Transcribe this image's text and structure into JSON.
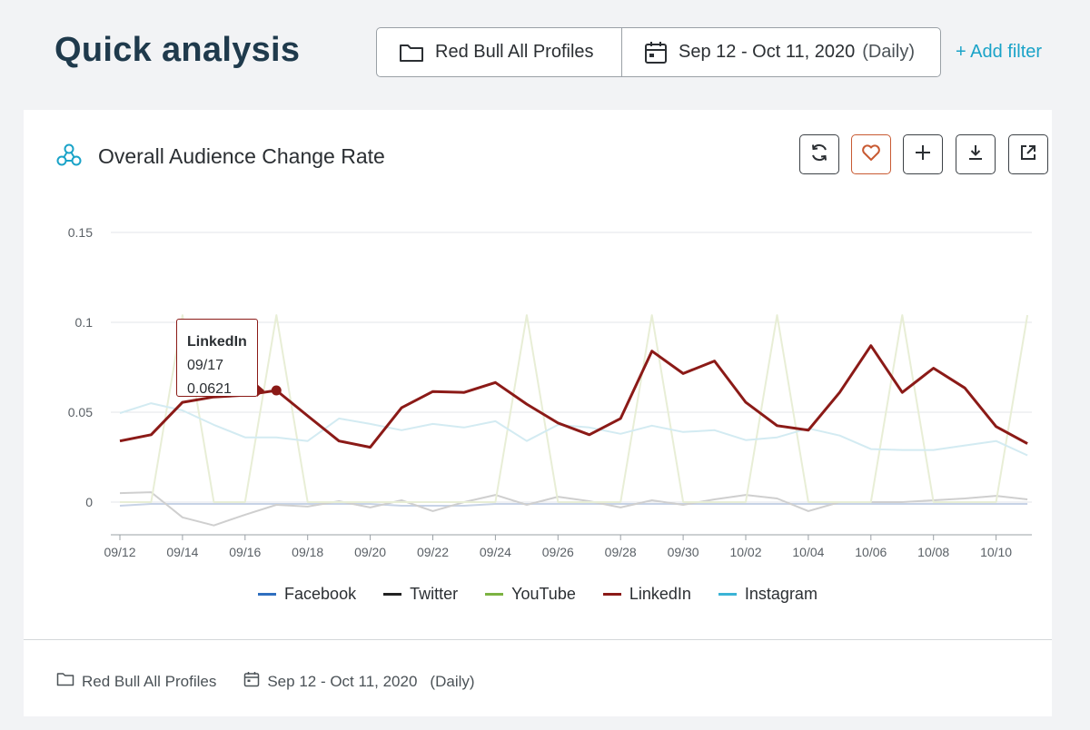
{
  "header": {
    "title": "Quick analysis",
    "profile_filter": "Red Bull All Profiles",
    "date_range": "Sep 12 - Oct 11, 2020",
    "granularity": "(Daily)",
    "add_filter": "+ Add filter"
  },
  "card": {
    "title": "Overall Audience Change Rate",
    "toolbar": [
      "refresh-icon",
      "heart-icon",
      "plus-icon",
      "download-icon",
      "external-link-icon"
    ]
  },
  "tooltip": {
    "series": "LinkedIn",
    "date": "09/17",
    "value": "0.0621"
  },
  "footer": {
    "profile": "Red Bull All Profiles",
    "date_range": "Sep 12 - Oct 11, 2020",
    "granularity": "(Daily)"
  },
  "colors": {
    "accent": "#1aa3c8",
    "linkedin": "#8b1a17",
    "favorite": "#c85a32"
  },
  "chart_data": {
    "type": "line",
    "title": "",
    "xlabel": "",
    "ylabel": "",
    "ylim": [
      -0.018,
      0.15
    ],
    "yticks": [
      "0.15",
      "0.1",
      "0.05",
      "0"
    ],
    "ytick_values": [
      0.15,
      0.1,
      0.05,
      0
    ],
    "x_tick_labels": [
      "09/12",
      "09/14",
      "09/16",
      "09/18",
      "09/20",
      "09/22",
      "09/24",
      "09/26",
      "09/28",
      "09/30",
      "10/02",
      "10/04",
      "10/06",
      "10/08",
      "10/10"
    ],
    "x": [
      "09/12",
      "09/13",
      "09/14",
      "09/15",
      "09/16",
      "09/17",
      "09/18",
      "09/19",
      "09/20",
      "09/21",
      "09/22",
      "09/23",
      "09/24",
      "09/25",
      "09/26",
      "09/27",
      "09/28",
      "09/29",
      "09/30",
      "10/01",
      "10/02",
      "10/03",
      "10/04",
      "10/05",
      "10/06",
      "10/07",
      "10/08",
      "10/09",
      "10/10",
      "10/11"
    ],
    "grid": true,
    "legend_position": "bottom",
    "highlighted_series": "LinkedIn",
    "series": [
      {
        "name": "Facebook",
        "color": "#2f6fbf",
        "faded_color": "#c7d3e6",
        "values": [
          -0.002,
          -0.001,
          -0.001,
          -0.001,
          -0.001,
          -0.001,
          -0.001,
          -0.001,
          -0.001,
          -0.002,
          -0.002,
          -0.002,
          -0.001,
          -0.001,
          -0.001,
          -0.001,
          -0.001,
          -0.001,
          -0.001,
          -0.001,
          -0.001,
          -0.001,
          -0.001,
          -0.001,
          -0.001,
          -0.001,
          -0.001,
          -0.001,
          -0.001,
          -0.001
        ]
      },
      {
        "name": "Twitter",
        "color": "#222222",
        "faded_color": "#cfcfcf",
        "values": [
          0.005,
          0.0055,
          -0.0085,
          -0.013,
          -0.007,
          -0.0015,
          -0.0025,
          0.0005,
          -0.003,
          0.001,
          -0.005,
          0,
          0.004,
          -0.0015,
          0.003,
          0.0005,
          -0.003,
          0.001,
          -0.0015,
          0.0015,
          0.004,
          0.002,
          -0.005,
          0,
          0,
          0,
          0.001,
          0.002,
          0.0035,
          0.0015
        ]
      },
      {
        "name": "YouTube",
        "color": "#7cb342",
        "faded_color": "#e8eed6",
        "values": [
          0,
          0,
          0.104,
          0,
          0,
          0.104,
          0,
          0,
          0,
          0,
          0,
          0,
          0,
          0.104,
          0,
          0,
          0,
          0.104,
          0,
          0,
          0,
          0.104,
          0,
          0,
          0,
          0.104,
          0,
          0,
          0,
          0.104
        ]
      },
      {
        "name": "LinkedIn",
        "color": "#8b1a17",
        "faded_color": "#8b1a17",
        "values": [
          0.034,
          0.0375,
          0.0555,
          0.0585,
          0.0595,
          0.0621,
          0.048,
          0.034,
          0.0305,
          0.0525,
          0.0615,
          0.061,
          0.0665,
          0.0545,
          0.044,
          0.0375,
          0.0465,
          0.084,
          0.0715,
          0.0785,
          0.0555,
          0.0425,
          0.04,
          0.061,
          0.087,
          0.061,
          0.0745,
          0.0635,
          0.042,
          0.0325
        ]
      },
      {
        "name": "Instagram",
        "color": "#3bb4d6",
        "faded_color": "#d3ebf2",
        "values": [
          0.0495,
          0.055,
          0.051,
          0.043,
          0.036,
          0.036,
          0.034,
          0.0465,
          0.0435,
          0.04,
          0.0435,
          0.0415,
          0.045,
          0.034,
          0.043,
          0.0415,
          0.038,
          0.0425,
          0.039,
          0.04,
          0.0345,
          0.036,
          0.041,
          0.037,
          0.0295,
          0.029,
          0.029,
          0.0315,
          0.034,
          0.026
        ]
      }
    ]
  }
}
